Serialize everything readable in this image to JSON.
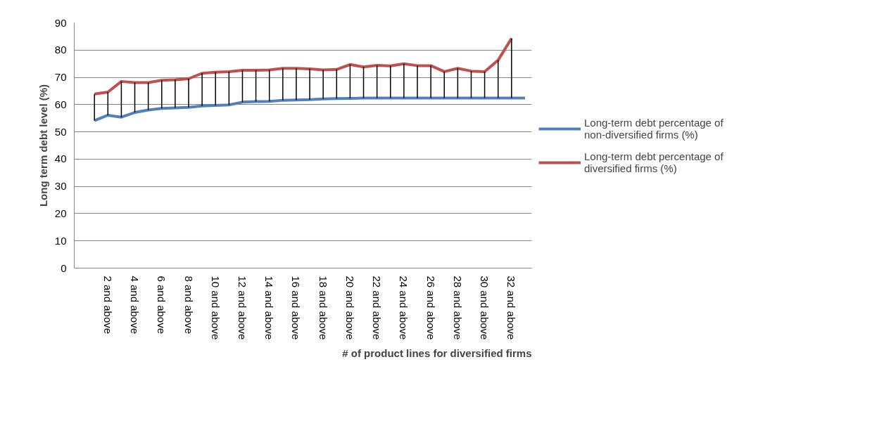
{
  "chart_data": {
    "type": "line",
    "ylabel": "Long term debt level (%)",
    "xlabel": "# of product lines for diversified firms",
    "categories": [
      null,
      null,
      "2 and above",
      null,
      "4 and above",
      null,
      "6 and above",
      null,
      "8 and above",
      null,
      "10 and above",
      null,
      "12 and above",
      null,
      "14 and above",
      null,
      "16 and above",
      null,
      "18 and above",
      null,
      "20 and above",
      null,
      "22 and above",
      null,
      "24 and above",
      null,
      "26 and above",
      null,
      "28 and above",
      null,
      "30 and above",
      null,
      "32 and above",
      null
    ],
    "series": [
      {
        "name": "Long-term debt percentage of non-diversified firms (%)",
        "color": "#4f81bd",
        "values": [
          null,
          54.1,
          56.1,
          55.4,
          57.1,
          58.0,
          58.6,
          58.8,
          59.0,
          59.5,
          59.7,
          59.9,
          60.9,
          61.1,
          61.2,
          61.6,
          61.7,
          61.8,
          62.1,
          62.2,
          62.3,
          62.4,
          62.4,
          62.4,
          62.4,
          62.4,
          62.4,
          62.4,
          62.4,
          62.4,
          62.4,
          62.4,
          62.4,
          62.4
        ]
      },
      {
        "name": "Long-term debt percentage of diversified firms (%)",
        "color": "#c0504d",
        "values": [
          null,
          63.9,
          64.6,
          68.5,
          68.1,
          68.1,
          68.9,
          69.1,
          69.5,
          71.5,
          71.9,
          72.1,
          72.6,
          72.6,
          72.7,
          73.3,
          73.3,
          73.1,
          72.7,
          72.9,
          74.7,
          73.8,
          74.4,
          74.2,
          75.0,
          74.3,
          74.3,
          72.1,
          73.3,
          72.3,
          72.1,
          76.3,
          84.3,
          null
        ],
        "errors": [
          null,
          [
            54.1,
            63.9
          ],
          [
            56.1,
            64.6
          ],
          [
            55.4,
            68.5
          ],
          [
            57.1,
            68.1
          ],
          [
            58.0,
            68.1
          ],
          [
            58.6,
            68.9
          ],
          [
            58.8,
            69.1
          ],
          [
            59.0,
            69.5
          ],
          [
            59.5,
            71.5
          ],
          [
            59.7,
            71.9
          ],
          [
            59.9,
            72.1
          ],
          [
            60.9,
            72.6
          ],
          [
            61.1,
            72.6
          ],
          [
            61.2,
            72.7
          ],
          [
            61.6,
            73.3
          ],
          [
            61.7,
            73.3
          ],
          [
            61.8,
            73.1
          ],
          [
            62.1,
            72.7
          ],
          [
            62.2,
            72.9
          ],
          [
            62.3,
            74.7
          ],
          [
            62.4,
            73.8
          ],
          [
            62.4,
            74.4
          ],
          [
            62.4,
            74.2
          ],
          [
            62.4,
            75.0
          ],
          [
            62.4,
            74.3
          ],
          [
            62.4,
            74.3
          ],
          [
            62.4,
            72.1
          ],
          [
            62.4,
            73.3
          ],
          [
            62.4,
            72.3
          ],
          [
            62.4,
            72.1
          ],
          [
            62.4,
            76.3
          ],
          [
            62.4,
            84.3
          ],
          null
        ]
      }
    ],
    "ylim": [
      0,
      90
    ],
    "yticks": [
      0,
      10,
      20,
      30,
      40,
      50,
      60,
      70,
      80,
      90
    ],
    "grid": "y",
    "legend": "right",
    "marker": "none",
    "line_style": "solid"
  }
}
